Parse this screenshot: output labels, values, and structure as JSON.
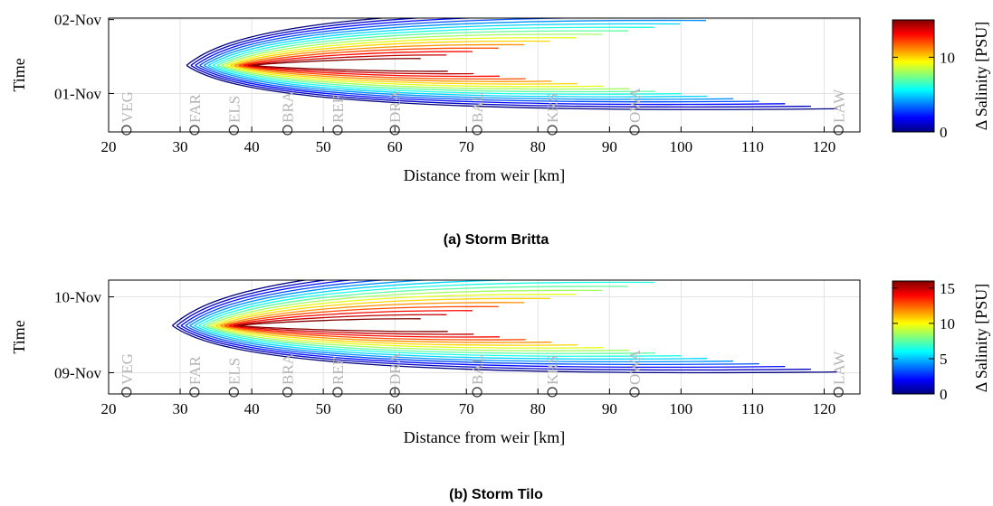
{
  "chart_data": [
    {
      "type": "contour",
      "caption": "(a) Storm Britta",
      "xlabel": "Distance from weir [km]",
      "ylabel": "Time",
      "xlim": [
        20,
        125
      ],
      "x_ticks": [
        20,
        30,
        40,
        50,
        60,
        70,
        80,
        90,
        100,
        110,
        120
      ],
      "y_ticks": [
        {
          "label": "01-Nov",
          "value": 1.0
        },
        {
          "label": "02-Nov",
          "value": 2.0
        }
      ],
      "ylim": [
        0.48,
        2.02
      ],
      "colorbar": {
        "label": "Δ Salinity [PSU]",
        "ticks": [
          0,
          10
        ],
        "range": [
          0,
          15
        ],
        "colormap": "jet"
      },
      "stations": [
        {
          "name": "VEG",
          "km": 22.5
        },
        {
          "name": "FAR",
          "km": 32
        },
        {
          "name": "ELS",
          "km": 37.5
        },
        {
          "name": "BRA",
          "km": 45
        },
        {
          "name": "REF",
          "km": 52
        },
        {
          "name": "DRA",
          "km": 60
        },
        {
          "name": "BAL",
          "km": 71.5
        },
        {
          "name": "KRS",
          "km": 82
        },
        {
          "name": "OWA",
          "km": 93.5
        },
        {
          "name": "LAW",
          "km": 122
        }
      ],
      "peak": {
        "km": 40,
        "time": 1.38
      },
      "n_levels": 16
    },
    {
      "type": "contour",
      "caption": "(b) Storm Tilo",
      "xlabel": "Distance from weir [km]",
      "ylabel": "Time",
      "xlim": [
        20,
        125
      ],
      "x_ticks": [
        20,
        30,
        40,
        50,
        60,
        70,
        80,
        90,
        100,
        110,
        120
      ],
      "y_ticks": [
        {
          "label": "09-Nov",
          "value": 9.0
        },
        {
          "label": "10-Nov",
          "value": 10.0
        }
      ],
      "ylim": [
        8.72,
        10.22
      ],
      "colorbar": {
        "label": "Δ Salinity [PSU]",
        "ticks": [
          0,
          5,
          10,
          15
        ],
        "range": [
          0,
          16
        ],
        "colormap": "jet"
      },
      "stations": [
        {
          "name": "VEG",
          "km": 22.5
        },
        {
          "name": "FAR",
          "km": 32
        },
        {
          "name": "ELS",
          "km": 37.5
        },
        {
          "name": "BRA",
          "km": 45
        },
        {
          "name": "REF",
          "km": 52
        },
        {
          "name": "DRA",
          "km": 60
        },
        {
          "name": "BAL",
          "km": 71.5
        },
        {
          "name": "KRS",
          "km": 82
        },
        {
          "name": "OWA",
          "km": 93.5
        },
        {
          "name": "LAW",
          "km": 122
        }
      ],
      "peak": {
        "km": 37,
        "time": 9.62
      },
      "n_levels": 16
    }
  ]
}
